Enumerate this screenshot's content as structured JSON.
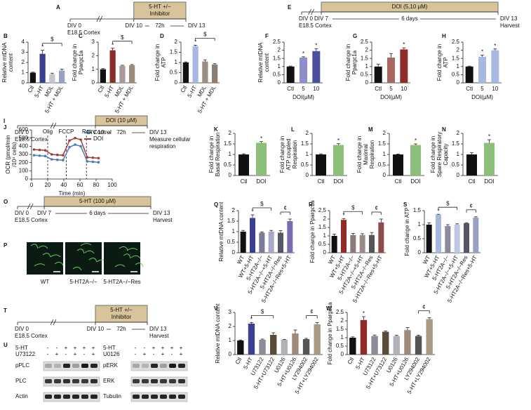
{
  "chart_data": [
    {
      "type": "bar",
      "letter": "B",
      "ylabel": [
        "Relative mtDNA",
        "content"
      ],
      "categories": [
        "Ctl",
        "5-HT",
        "MDL",
        "5-HT + MDL"
      ],
      "values": [
        1,
        2.85,
        0.85,
        1.2
      ],
      "errors": [
        0.05,
        0.35,
        0.1,
        0.15
      ],
      "colors": [
        "#111111",
        "#3b3f8f",
        "#c4c4cc",
        "#9aa0c0"
      ],
      "ylim": [
        0,
        4
      ],
      "yticks": [
        0,
        1,
        2,
        3,
        4
      ],
      "annotations": [
        {
          "text": "*",
          "index": 1
        }
      ],
      "brackets": [
        {
          "text": "$",
          "from": 1,
          "to": 3
        }
      ]
    },
    {
      "type": "bar",
      "letter": "C",
      "ylabel": [
        "Fold change in",
        "Ppargc1a"
      ],
      "categories": [
        "Ctl",
        "5-HT",
        "MDL",
        "5-HT + MDL"
      ],
      "values": [
        1,
        2.4,
        1.25,
        1.3
      ],
      "errors": [
        0.05,
        0.15,
        0.05,
        0.05
      ],
      "colors": [
        "#111111",
        "#8e2b2b",
        "#a89a98",
        "#9c8a7a"
      ],
      "ylim": [
        0,
        3
      ],
      "yticks": [
        0,
        1,
        2,
        3
      ],
      "annotations": [
        {
          "text": "*",
          "index": 1
        }
      ],
      "brackets": [
        {
          "text": "$",
          "from": 1,
          "to": 3
        }
      ]
    },
    {
      "type": "bar",
      "letter": "D",
      "ylabel": [
        "Fold change in",
        "ATP"
      ],
      "categories": [
        "Ctl",
        "5-HT",
        "MDL",
        "5-HT + MDL"
      ],
      "values": [
        1,
        1.8,
        1.05,
        0.9
      ],
      "errors": [
        0.03,
        0.05,
        0.08,
        0.04
      ],
      "colors": [
        "#111111",
        "#a9b8e0",
        "#9a8e86",
        "#8c7e72"
      ],
      "ylim": [
        0,
        2
      ],
      "yticks": [
        0,
        0.5,
        1,
        1.5,
        2
      ],
      "annotations": [
        {
          "text": "*",
          "index": 1
        }
      ],
      "brackets": [
        {
          "text": "$",
          "from": 1,
          "to": 3
        }
      ]
    },
    {
      "type": "bar",
      "letter": "F",
      "ylabel": [
        "Relative mtDNA",
        "content"
      ],
      "xlabel": "DOI(μM)",
      "categories": [
        "Ctl",
        "5",
        "10"
      ],
      "values": [
        1,
        1.55,
        1.95
      ],
      "errors": [
        0.03,
        0.05,
        0.15
      ],
      "colors": [
        "#111111",
        "#8e8ec8",
        "#4e4ea0"
      ],
      "ylim": [
        0,
        2.5
      ],
      "yticks": [
        0,
        0.5,
        1,
        1.5,
        2,
        2.5
      ],
      "annotations": [
        {
          "text": "*",
          "index": 1
        },
        {
          "text": "*",
          "index": 2
        }
      ],
      "brackets": []
    },
    {
      "type": "bar",
      "letter": "G",
      "ylabel": [
        "Fold change in",
        "Ppargc1a"
      ],
      "xlabel": "DOI(μM)",
      "categories": [
        "Ctl",
        "5",
        "10"
      ],
      "values": [
        1,
        1.55,
        2.05
      ],
      "errors": [
        0.15,
        0.25,
        0.1
      ],
      "colors": [
        "#111111",
        "#a86860",
        "#8e2b2b"
      ],
      "ylim": [
        0,
        2.5
      ],
      "yticks": [
        0,
        0.5,
        1,
        1.5,
        2,
        2.5
      ],
      "annotations": [
        {
          "text": "*",
          "index": 2
        }
      ],
      "brackets": []
    },
    {
      "type": "bar",
      "letter": "H",
      "ylabel": [
        "Fold change in",
        "ATP"
      ],
      "xlabel": "DOI(μM)",
      "categories": [
        "Ctl",
        "5",
        "10"
      ],
      "values": [
        1,
        1.6,
        2.0
      ],
      "errors": [
        0.03,
        0.1,
        0.08
      ],
      "colors": [
        "#111111",
        "#a9b8e0",
        "#a9b8e0"
      ],
      "ylim": [
        0,
        2.5
      ],
      "yticks": [
        0,
        0.5,
        1,
        1.5,
        2,
        2.5
      ],
      "annotations": [
        {
          "text": "*",
          "index": 1
        },
        {
          "text": "*",
          "index": 2
        }
      ],
      "brackets": []
    },
    {
      "type": "line",
      "letter": "J",
      "ylabel": [
        "OCR (pmol/min",
        "/10⁴ cells)"
      ],
      "xlabel": "Time (min)",
      "x": [
        3,
        10,
        17,
        25,
        32,
        39,
        47,
        54,
        61,
        69,
        76,
        83
      ],
      "series": [
        {
          "name": "Control",
          "color": "#4a7ab8",
          "values": [
            290,
            285,
            280,
            240,
            235,
            230,
            390,
            420,
            400,
            215,
            210,
            205
          ]
        },
        {
          "name": "DOI",
          "color": "#a33a3a",
          "values": [
            360,
            355,
            350,
            300,
            295,
            290,
            470,
            500,
            480,
            265,
            260,
            255
          ]
        }
      ],
      "xlim": [
        0,
        100
      ],
      "xticks": [
        0,
        20,
        40,
        60,
        80,
        100
      ],
      "ylim": [
        0,
        600
      ],
      "yticks": [
        0,
        100,
        200,
        300,
        400,
        500,
        600
      ],
      "legend": "upper right",
      "annotations": [
        {
          "text": "Olig",
          "x": 20
        },
        {
          "text": "FCCP",
          "x": 43
        },
        {
          "text": "Rot",
          "x": 68
        }
      ]
    },
    {
      "type": "bar",
      "letter": "K",
      "ylabel": [
        "Fold change in",
        "Basal Respiration"
      ],
      "categories": [
        "Ctl",
        "DOI"
      ],
      "values": [
        1,
        1.55
      ],
      "errors": [
        0.03,
        0.06
      ],
      "colors": [
        "#111111",
        "#8cc07a"
      ],
      "ylim": [
        0,
        2
      ],
      "yticks": [
        0,
        0.5,
        1,
        1.5,
        2
      ],
      "annotations": [
        {
          "text": "*",
          "index": 1
        }
      ],
      "brackets": []
    },
    {
      "type": "bar",
      "letter": "L",
      "ylabel": [
        "Fold change in",
        "ATP coupled",
        "Respiration"
      ],
      "categories": [
        "Ctl",
        "DOI"
      ],
      "values": [
        1,
        1.45
      ],
      "errors": [
        0.03,
        0.06
      ],
      "colors": [
        "#111111",
        "#8cc07a"
      ],
      "ylim": [
        0,
        2
      ],
      "yticks": [
        0,
        0.5,
        1,
        1.5,
        2
      ],
      "annotations": [
        {
          "text": "*",
          "index": 1
        }
      ],
      "brackets": []
    },
    {
      "type": "bar",
      "letter": "M",
      "ylabel": [
        "Fold change in",
        "Maximal",
        "Respiration"
      ],
      "categories": [
        "Ctl",
        "DOI"
      ],
      "values": [
        1,
        1.45
      ],
      "errors": [
        0.02,
        0.05
      ],
      "colors": [
        "#111111",
        "#8cc07a"
      ],
      "ylim": [
        0,
        2
      ],
      "yticks": [
        0,
        0.5,
        1,
        1.5,
        2
      ],
      "annotations": [
        {
          "text": "*",
          "index": 1
        }
      ],
      "brackets": []
    },
    {
      "type": "bar",
      "letter": "N",
      "ylabel": [
        "Fold change in",
        "Spare Respiratory",
        "Capacity"
      ],
      "categories": [
        "Ctl",
        "DOI"
      ],
      "values": [
        1,
        1.55
      ],
      "errors": [
        0.08,
        0.15
      ],
      "colors": [
        "#111111",
        "#8cc07a"
      ],
      "ylim": [
        0,
        2
      ],
      "yticks": [
        0,
        0.5,
        1,
        1.5,
        2
      ],
      "annotations": [
        {
          "text": "*",
          "index": 1
        }
      ],
      "brackets": []
    },
    {
      "type": "bar",
      "letter": "Q",
      "ylabel": [
        "Relative mtDNA content"
      ],
      "categories": [
        "WT",
        "WT+5-HT",
        "5-HT2A−/−",
        "5-HT2A−/−+5-HT",
        "5-HT2A−/−Res",
        "5-HT2A−/−Res+5-HT"
      ],
      "values": [
        1,
        1.65,
        0.95,
        1.0,
        0.95,
        1.5
      ],
      "errors": [
        0.06,
        0.15,
        0.04,
        0.06,
        0.1,
        0.1
      ],
      "colors": [
        "#111111",
        "#3b3f8f",
        "#7a7a9a",
        "#a8a8c8",
        "#555566",
        "#7a6ab0"
      ],
      "ylim": [
        0,
        2
      ],
      "yticks": [
        0,
        0.5,
        1,
        1.5,
        2
      ],
      "annotations": [
        {
          "text": "*",
          "index": 1
        }
      ],
      "brackets": [
        {
          "text": "$",
          "from": 1,
          "to": 3
        },
        {
          "text": "¢",
          "from": 4,
          "to": 5
        }
      ]
    },
    {
      "type": "bar",
      "letter": "R",
      "ylabel": [
        "Fold change in Ppargc1a"
      ],
      "categories": [
        "WT",
        "WT+5-HT",
        "5-HT2A−/−",
        "5-HT2A−/−+5-HT",
        "5-HT2A−/−Res",
        "5-HT2A−/−Res+5-HT"
      ],
      "values": [
        1,
        1.95,
        1.05,
        1.05,
        1.05,
        1.8
      ],
      "errors": [
        0.1,
        0.08,
        0.1,
        0.08,
        0.15,
        0.2
      ],
      "colors": [
        "#111111",
        "#8e2b2b",
        "#8a7a7a",
        "#9a8a8a",
        "#555555",
        "#8e4a4a"
      ],
      "ylim": [
        0,
        2.5
      ],
      "yticks": [
        0,
        0.5,
        1,
        1.5,
        2,
        2.5
      ],
      "annotations": [
        {
          "text": "*",
          "index": 1
        }
      ],
      "brackets": [
        {
          "text": "$",
          "from": 1,
          "to": 3
        },
        {
          "text": "¢",
          "from": 4,
          "to": 5
        }
      ]
    },
    {
      "type": "bar",
      "letter": "S",
      "ylabel": [
        "Fold change in ATP"
      ],
      "categories": [
        "WT",
        "WT+5-HT",
        "5-HT2A−/−",
        "5-HT2A−/−+5-HT",
        "5-HT2A−/−Res",
        "5-HT2A−/−Res+5-HT"
      ],
      "values": [
        1,
        1.35,
        0.95,
        1.0,
        1.05,
        1.25
      ],
      "errors": [
        0.06,
        0.02,
        0.05,
        0.03,
        0.02,
        0.03
      ],
      "colors": [
        "#111111",
        "#a9b8e0",
        "#8a8a9a",
        "#c0c8e0",
        "#555566",
        "#9aa0c0"
      ],
      "ylim": [
        0,
        1.5
      ],
      "yticks": [
        0,
        0.5,
        1,
        1.5
      ],
      "annotations": [
        {
          "text": "*",
          "index": 1
        }
      ],
      "brackets": [
        {
          "text": "$",
          "from": 1,
          "to": 3
        },
        {
          "text": "¢",
          "from": 4,
          "to": 5
        }
      ]
    },
    {
      "type": "bar",
      "letter": "V",
      "ylabel": [
        "Relative mtDNA content"
      ],
      "categories": [
        "Ctl",
        "5-HT",
        "U73122",
        "5-HT+U73122",
        "U0126",
        "5-HT+U0126",
        "LY294002",
        "5-HT+LY294002"
      ],
      "values": [
        1,
        2.2,
        1.05,
        1.4,
        1.05,
        1.5,
        1.1,
        2.15
      ],
      "errors": [
        0.04,
        0.08,
        0.05,
        0.15,
        0.03,
        0.25,
        0.05,
        0.12
      ],
      "colors": [
        "#111111",
        "#3b3f8f",
        "#8b8b99",
        "#5a4a3a",
        "#b0b0b8",
        "#9c8a7a",
        "#555555",
        "#a89a80"
      ],
      "ylim": [
        0,
        3
      ],
      "yticks": [
        0,
        1,
        2,
        3
      ],
      "annotations": [
        {
          "text": "*",
          "index": 1
        }
      ],
      "brackets": [
        {
          "text": "$",
          "from": 1,
          "to": 3
        },
        {
          "text": "¢",
          "from": 6,
          "to": 7
        }
      ]
    },
    {
      "type": "bar",
      "letter": "W",
      "ylabel": [
        "Fold change in Ppargc1a"
      ],
      "categories": [
        "Ctl",
        "5-HT",
        "U73122",
        "5-HT+U73122",
        "U0126",
        "5-HT+U0126",
        "LY294002",
        "5-HT+LY294002"
      ],
      "values": [
        1,
        2.05,
        1.1,
        1.35,
        1.1,
        1.45,
        1.1,
        2.1
      ],
      "errors": [
        0.05,
        0.2,
        0.06,
        0.05,
        0.04,
        0.15,
        0.05,
        0.08
      ],
      "colors": [
        "#111111",
        "#8e2b2b",
        "#8b8b99",
        "#5a4a3a",
        "#b0b0b8",
        "#9c8a7a",
        "#555555",
        "#a89a80"
      ],
      "ylim": [
        0,
        2.5
      ],
      "yticks": [
        0,
        0.5,
        1,
        1.5,
        2,
        2.5
      ],
      "annotations": [
        {
          "text": "*",
          "index": 1
        }
      ],
      "brackets": [
        {
          "text": "¢",
          "from": 6,
          "to": 7
        }
      ]
    }
  ],
  "timelines": [
    {
      "letter": "A",
      "start": "DIV 0",
      "source": "E18.5 Cortex",
      "mid": "DIV 10",
      "treatment": [
        "5-HT +/−",
        "Inhibitor"
      ],
      "duration": "72h",
      "end": "DIV 13",
      "notes": []
    },
    {
      "letter": "E",
      "start": "DIV 0",
      "source": "E18.5 Cortex",
      "mid": "DIV 7",
      "treatment": [
        "DOI (5,10 μM)"
      ],
      "duration": "6 days",
      "end": "DIV 13",
      "notes": [
        "Harvest"
      ]
    },
    {
      "letter": "I",
      "start": "DIV 0",
      "source": "E18.5 Cortex",
      "mid": "DIV 10",
      "treatment": [
        "DOI (10 μM)"
      ],
      "duration": "72h",
      "end": "DIV 13",
      "notes": [
        "Measure cellular",
        "respiration"
      ]
    },
    {
      "letter": "O",
      "start": "DIV 0",
      "source": "E18.5 Cortex",
      "mid": "DIV 7",
      "treatment": [
        "5-HT (100 μM)"
      ],
      "duration": "6 days",
      "end": "DIV 13",
      "notes": [
        "Harvest"
      ]
    },
    {
      "letter": "T",
      "start": "DIV 0",
      "source": "E18.5 Cortex",
      "mid": "DIV 10",
      "treatment": [
        "5-HT +/−",
        "Inhibitor"
      ],
      "duration": "72h",
      "end": "DIV 13",
      "notes": [
        "Harvest"
      ]
    }
  ],
  "images": {
    "letter": "P",
    "labels": [
      "WT",
      "5-HT2A−/−",
      "5-HT2A−/−Res"
    ]
  },
  "blots": {
    "letter": "U",
    "panels": [
      {
        "treatments": [
          {
            "name": "5-HT",
            "signs": [
              "-",
              "-",
              "+",
              "+",
              "+",
              "+"
            ]
          },
          {
            "name": "U73122",
            "signs": [
              "-",
              "+",
              "-",
              "+",
              "-",
              "+"
            ]
          }
        ],
        "bands": [
          "pPLC",
          "PLC",
          "Actin"
        ]
      },
      {
        "treatments": [
          {
            "name": "5-HT",
            "signs": [
              "-",
              "-",
              "+",
              "+",
              "+",
              "+"
            ]
          },
          {
            "name": "U0126",
            "signs": [
              "-",
              "+",
              "-",
              "+",
              "-",
              "+"
            ]
          }
        ],
        "bands": [
          "pERK",
          "ERK",
          "Tubulin"
        ]
      }
    ]
  }
}
